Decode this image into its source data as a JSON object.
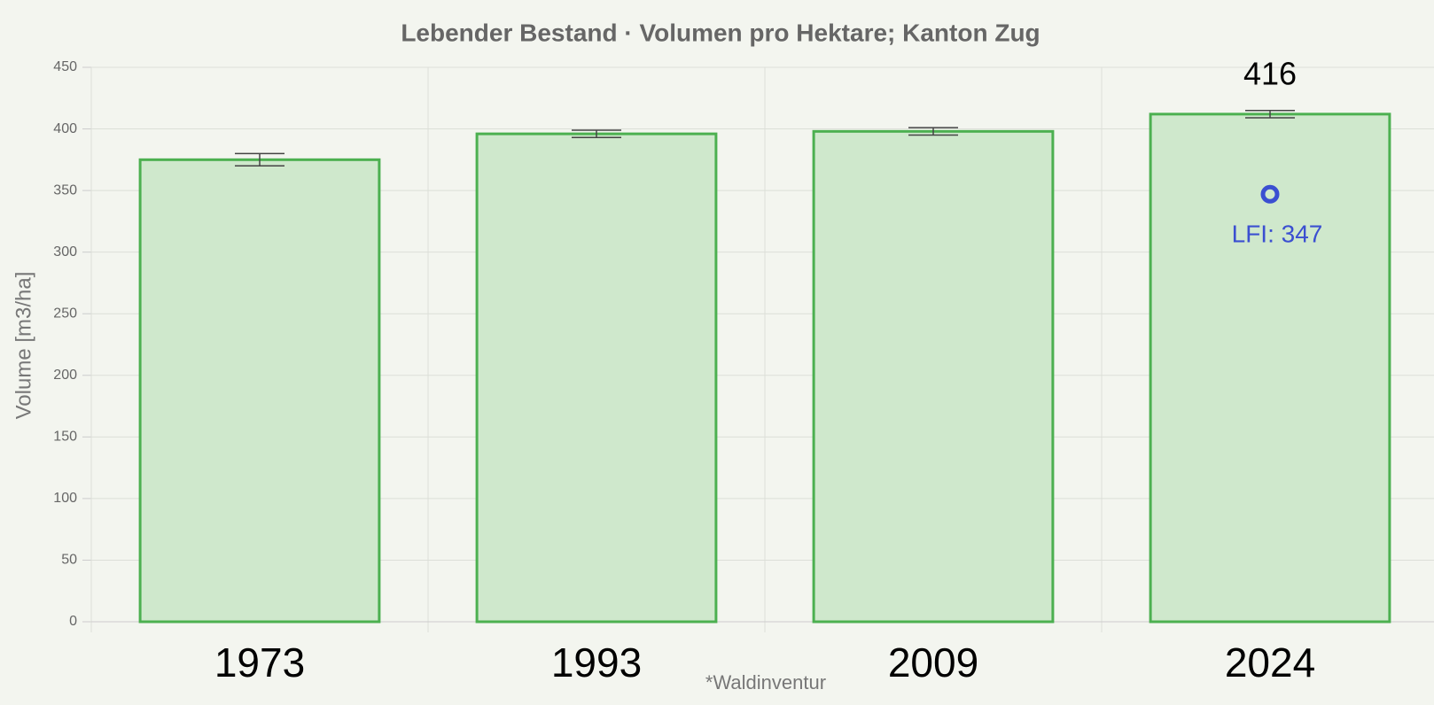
{
  "chart_data": {
    "type": "bar",
    "title": "Lebender Bestand · Volumen pro Hektare; Kanton Zug",
    "ylabel": "Volume [m3/ha]",
    "categories": [
      "1973",
      "1993",
      "2009",
      "2024"
    ],
    "values": [
      375,
      396,
      398,
      412
    ],
    "errors": [
      5,
      3,
      3,
      3
    ],
    "color": "#cfe8cc",
    "edge_color": "#4cb050",
    "ylim": [
      0,
      450
    ],
    "yticks": [
      0,
      50,
      100,
      150,
      200,
      250,
      300,
      350,
      400,
      450
    ],
    "grid": true,
    "reference": {
      "values": [
        null,
        null,
        null,
        347
      ],
      "value_labels": [
        null,
        null,
        null,
        "LFI: 347"
      ],
      "color": "#3b4fd1"
    },
    "annotations": [
      {
        "text": "416"
      }
    ],
    "footnote": "*Waldinventur"
  }
}
